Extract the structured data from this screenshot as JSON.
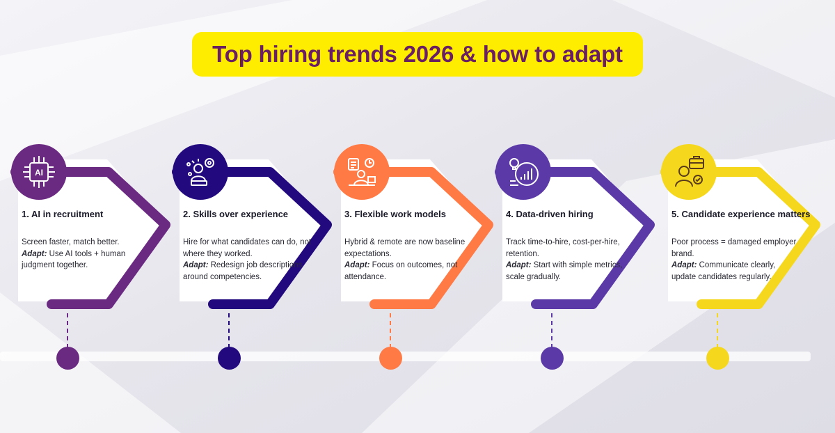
{
  "title": "Top hiring trends 2026 & how to adapt",
  "colors": {
    "title_bg": "#ffed00",
    "title_text": "#6a1f63"
  },
  "trends": [
    {
      "title": "1. AI in recruitment",
      "body": "Screen faster, match better.",
      "adapt_label": "Adapt:",
      "adapt_text": " Use AI tools + human judgment together.",
      "color": "#6b2a82",
      "icon": "ai-chip-icon"
    },
    {
      "title": "2. Skills over experience",
      "body": "Hire for what candidates can do, not where they worked.",
      "adapt_label": "Adapt:",
      "adapt_text": " Redesign job descriptions around competencies.",
      "color": "#22097e",
      "icon": "person-skills-icon"
    },
    {
      "title": "3. Flexible work models",
      "body": "Hybrid & remote are now baseline expectations.",
      "adapt_label": "Adapt:",
      "adapt_text": " Focus on outcomes, not attendance.",
      "color": "#ff7a45",
      "icon": "remote-work-icon"
    },
    {
      "title": "4. Data-driven hiring",
      "body": "Track time-to-hire, cost-per-hire, retention.",
      "adapt_label": "Adapt:",
      "adapt_text": " Start with simple metrics, scale gradually.",
      "color": "#5b3aa8",
      "icon": "analytics-icon"
    },
    {
      "title": "5. Candidate experience matters",
      "body": "Poor process = damaged employer brand.",
      "adapt_label": "Adapt:",
      "adapt_text": " Communicate clearly, update candidates regularly.",
      "color": "#f5d81e",
      "icon": "candidate-icon"
    }
  ]
}
